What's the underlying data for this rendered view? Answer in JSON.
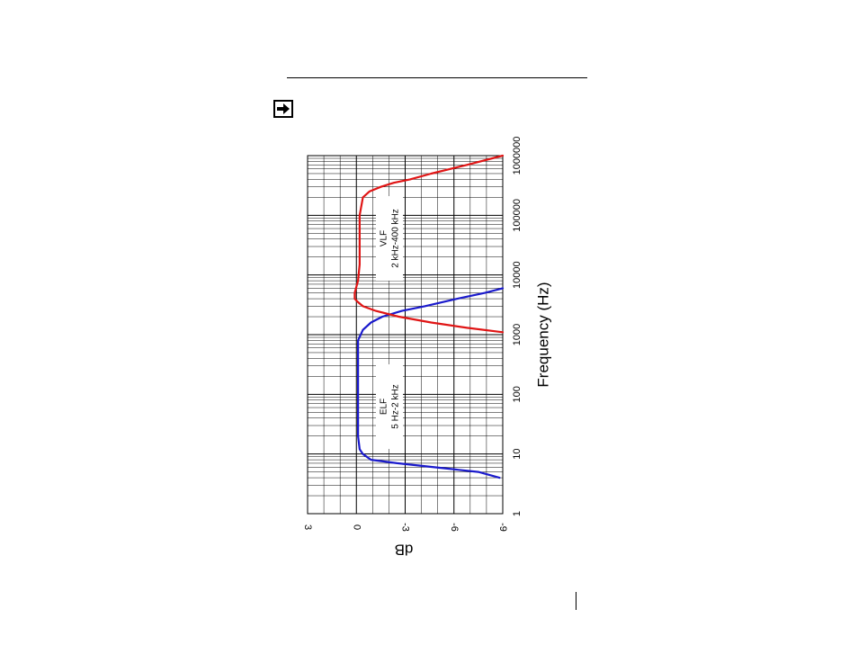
{
  "page": {
    "note_icon": "arrow-right-icon"
  },
  "chart_data": {
    "type": "line",
    "orientation": "rotated-90-clockwise",
    "xlabel": "Frequency (Hz)",
    "ylabel": "dB",
    "x_scale": "log",
    "xlim": [
      1,
      1000000
    ],
    "ylim": [
      -9,
      3
    ],
    "x_ticks": [
      1,
      10,
      100,
      1000,
      10000,
      100000,
      1000000
    ],
    "x_tick_labels": [
      "1",
      "10",
      "100",
      "1000",
      "10000",
      "100000",
      "1000000"
    ],
    "y_ticks": [
      3,
      0,
      -3,
      -6,
      -9
    ],
    "y_tick_labels": [
      "3",
      "0",
      "-3",
      "-6",
      "-9"
    ],
    "grid": true,
    "annotations": [
      {
        "lines": [
          "ELF",
          "5 Hz-2 kHz"
        ]
      },
      {
        "lines": [
          "VLF",
          "2 kHz-400 kHz"
        ]
      }
    ],
    "series": [
      {
        "color": "#1a1acc",
        "x": [
          4,
          5,
          6,
          7,
          8,
          10,
          12,
          20,
          50,
          100,
          300,
          800,
          1200,
          1600,
          2000,
          2500,
          3000,
          4000,
          5000,
          6000
        ],
        "y": [
          -8.8,
          -7.5,
          -4.8,
          -2.5,
          -0.9,
          -0.4,
          -0.2,
          -0.1,
          -0.1,
          -0.1,
          -0.1,
          -0.1,
          -0.4,
          -0.9,
          -1.6,
          -2.8,
          -4.2,
          -6.2,
          -7.9,
          -9.0
        ]
      },
      {
        "color": "#e01515",
        "x": [
          1100,
          1300,
          1600,
          2000,
          2500,
          3000,
          3500,
          4000,
          5000,
          8000,
          15000,
          50000,
          100000,
          200000,
          250000,
          300000,
          350000,
          400000,
          500000,
          700000,
          1000000
        ],
        "y": [
          -9.0,
          -6.8,
          -4.6,
          -2.6,
          -1.2,
          -0.4,
          -0.1,
          0.1,
          0.1,
          -0.1,
          -0.2,
          -0.2,
          -0.2,
          -0.4,
          -0.8,
          -1.5,
          -2.3,
          -3.3,
          -4.6,
          -6.8,
          -9.0
        ]
      }
    ]
  }
}
